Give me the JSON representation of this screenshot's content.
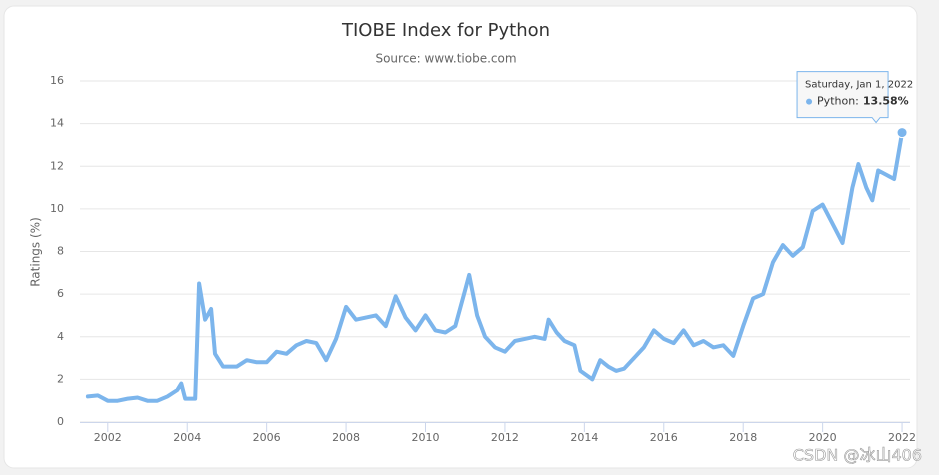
{
  "chart_data": {
    "type": "line",
    "title": "TIOBE Index for Python",
    "subtitle": "Source: www.tiobe.com",
    "y_label": "Ratings (%)",
    "xlim": [
      2001.3,
      2022.2
    ],
    "xticks": [
      2002,
      2004,
      2006,
      2008,
      2010,
      2012,
      2014,
      2016,
      2018,
      2020,
      2022
    ],
    "ylim": [
      0,
      16
    ],
    "yticks": [
      0,
      2,
      4,
      6,
      8,
      10,
      12,
      14,
      16
    ],
    "grid": true,
    "x": [
      2001.5,
      2001.75,
      2002,
      2002.25,
      2002.5,
      2002.75,
      2003,
      2003.25,
      2003.5,
      2003.75,
      2003.85,
      2003.95,
      2004.2,
      2004.3,
      2004.45,
      2004.6,
      2004.7,
      2004.9,
      2005.25,
      2005.5,
      2005.75,
      2006,
      2006.25,
      2006.5,
      2006.75,
      2007,
      2007.25,
      2007.5,
      2007.75,
      2008,
      2008.25,
      2008.5,
      2008.75,
      2009,
      2009.25,
      2009.5,
      2009.75,
      2010,
      2010.25,
      2010.5,
      2010.75,
      2011,
      2011.1,
      2011.3,
      2011.5,
      2011.75,
      2012,
      2012.25,
      2012.5,
      2012.75,
      2013,
      2013.1,
      2013.3,
      2013.5,
      2013.75,
      2013.9,
      2014.2,
      2014.4,
      2014.6,
      2014.8,
      2015,
      2015.2,
      2015.5,
      2015.75,
      2016,
      2016.25,
      2016.5,
      2016.75,
      2017,
      2017.25,
      2017.5,
      2017.75,
      2018,
      2018.25,
      2018.5,
      2018.75,
      2019,
      2019.25,
      2019.5,
      2019.75,
      2020,
      2020.25,
      2020.5,
      2020.75,
      2020.9,
      2021.1,
      2021.25,
      2021.4,
      2021.6,
      2021.8,
      2022
    ],
    "series": [
      {
        "name": "Python",
        "color": "#7cb5ec",
        "values": [
          1.2,
          1.25,
          1.0,
          1.0,
          1.1,
          1.15,
          1.0,
          1.0,
          1.2,
          1.5,
          1.8,
          1.1,
          1.1,
          6.5,
          4.8,
          5.3,
          3.2,
          2.6,
          2.6,
          2.9,
          2.8,
          2.8,
          3.3,
          3.2,
          3.6,
          3.8,
          3.7,
          2.9,
          3.9,
          5.4,
          4.8,
          4.9,
          5.0,
          4.5,
          5.9,
          4.9,
          4.3,
          5.0,
          4.3,
          4.2,
          4.5,
          6.2,
          6.9,
          5.0,
          4.0,
          3.5,
          3.3,
          3.8,
          3.9,
          4.0,
          3.9,
          4.8,
          4.2,
          3.8,
          3.6,
          2.4,
          2.0,
          2.9,
          2.6,
          2.4,
          2.5,
          2.9,
          3.5,
          4.3,
          3.9,
          3.7,
          4.3,
          3.6,
          3.8,
          3.5,
          3.6,
          3.1,
          4.5,
          5.8,
          6.0,
          7.5,
          8.3,
          7.8,
          8.2,
          9.9,
          10.2,
          9.3,
          8.4,
          11.0,
          12.1,
          11.0,
          10.4,
          11.8,
          11.6,
          11.4,
          13.58
        ]
      }
    ],
    "tooltip": {
      "header": "Saturday, Jan 1, 2022",
      "name": "Python:",
      "value_label": "13.58%"
    },
    "watermark": "CSDN @冰山406"
  }
}
